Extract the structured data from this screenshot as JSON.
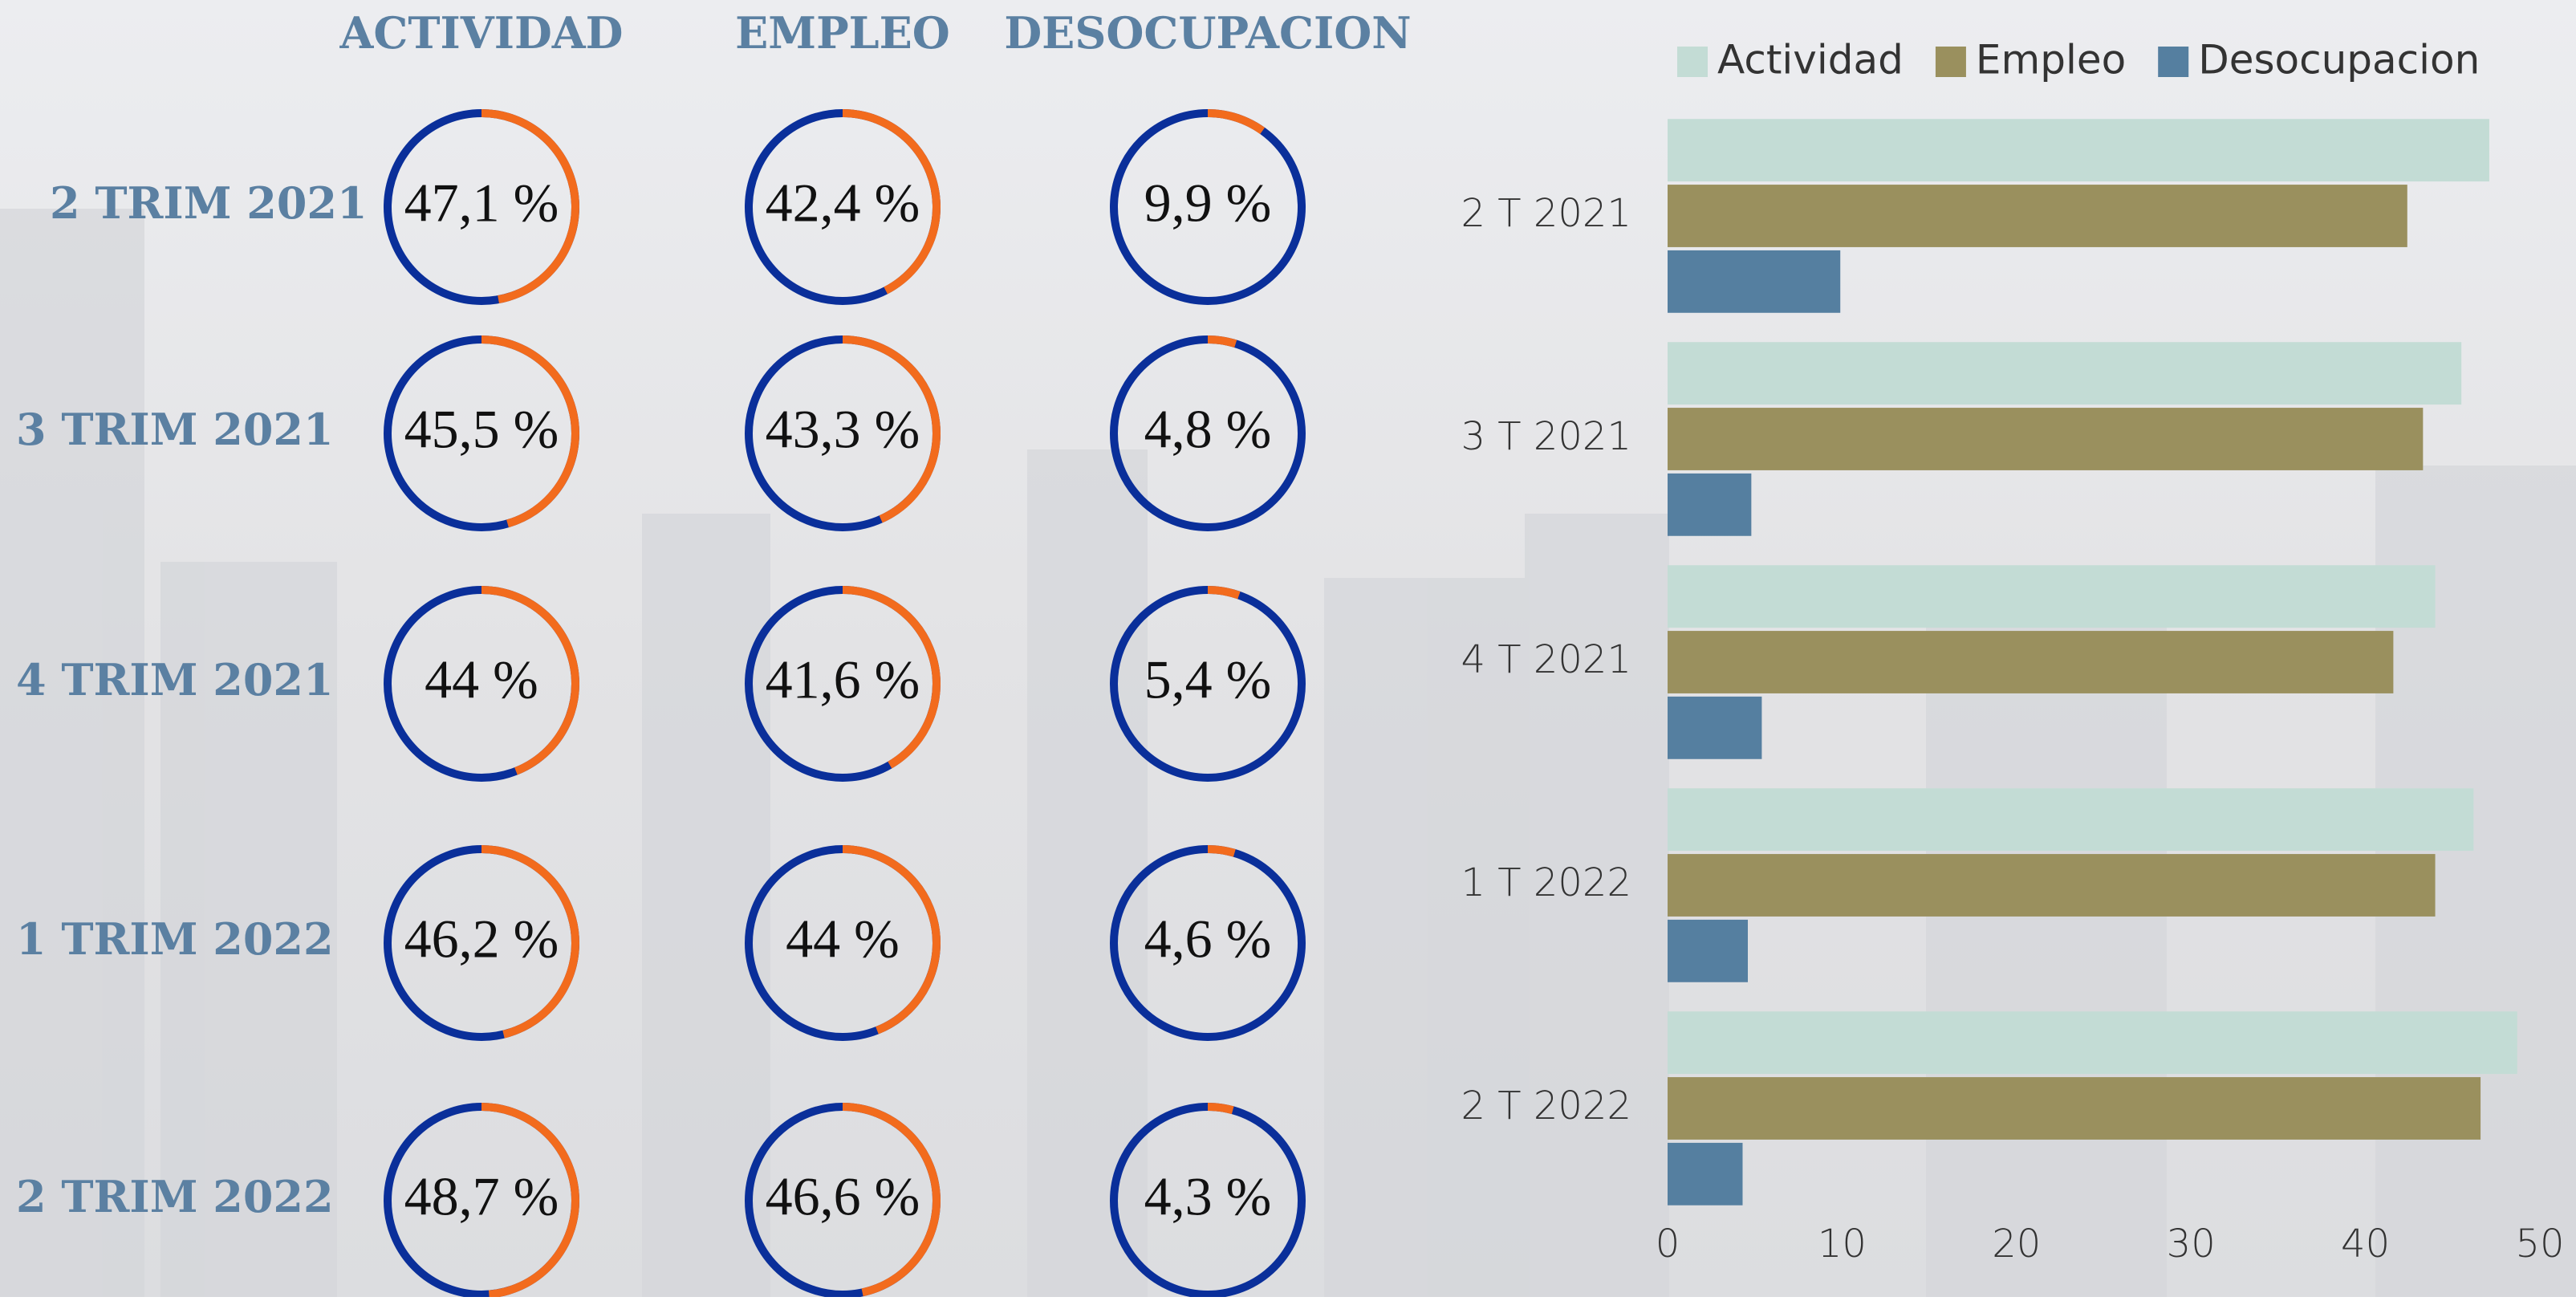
{
  "chart_data": [
    {
      "type": "donut",
      "categories": [
        "2 TRIM 2021",
        "3 TRIM 2021",
        "4 TRIM 2021",
        "1 TRIM 2022",
        "2 TRIM 2022"
      ],
      "series": [
        {
          "name": "ACTIVIDAD",
          "values": [
            47.1,
            45.5,
            44,
            46.2,
            48.7
          ],
          "value_labels": [
            "47,1 %",
            "45,5 %",
            "44 %",
            "46,2 %",
            "48,7 %"
          ]
        },
        {
          "name": "EMPLEO",
          "values": [
            42.4,
            43.3,
            41.6,
            44,
            46.6
          ],
          "value_labels": [
            "42,4 %",
            "43,3 %",
            "41,6 %",
            "44 %",
            "46,6 %"
          ]
        },
        {
          "name": "DESOCUPACION",
          "values": [
            9.9,
            4.8,
            5.4,
            4.6,
            4.3
          ],
          "value_labels": [
            "9,9 %",
            "4,8 %",
            "5,4 %",
            "4,6 %",
            "4,3 %"
          ]
        }
      ],
      "color": "#f26b1d",
      "track_color": "#0a2f9a"
    },
    {
      "type": "bar",
      "orientation": "horizontal",
      "categories": [
        "2 T 2021",
        "3 T 2021",
        "4 T 2021",
        "1 T 2022",
        "2 T 2022"
      ],
      "series": [
        {
          "name": "Actividad",
          "color": "#c3dcd5",
          "values": [
            47.1,
            45.5,
            44,
            46.2,
            48.7
          ]
        },
        {
          "name": "Empleo",
          "color": "#9a905e",
          "values": [
            42.4,
            43.3,
            41.6,
            44,
            46.6
          ]
        },
        {
          "name": "Desocupacion",
          "color": "#557fa0",
          "values": [
            9.9,
            4.8,
            5.4,
            4.6,
            4.3
          ]
        }
      ],
      "xlim": [
        0,
        50
      ],
      "xticks": [
        0,
        10,
        20,
        30,
        40,
        50
      ],
      "legend": "top"
    }
  ]
}
